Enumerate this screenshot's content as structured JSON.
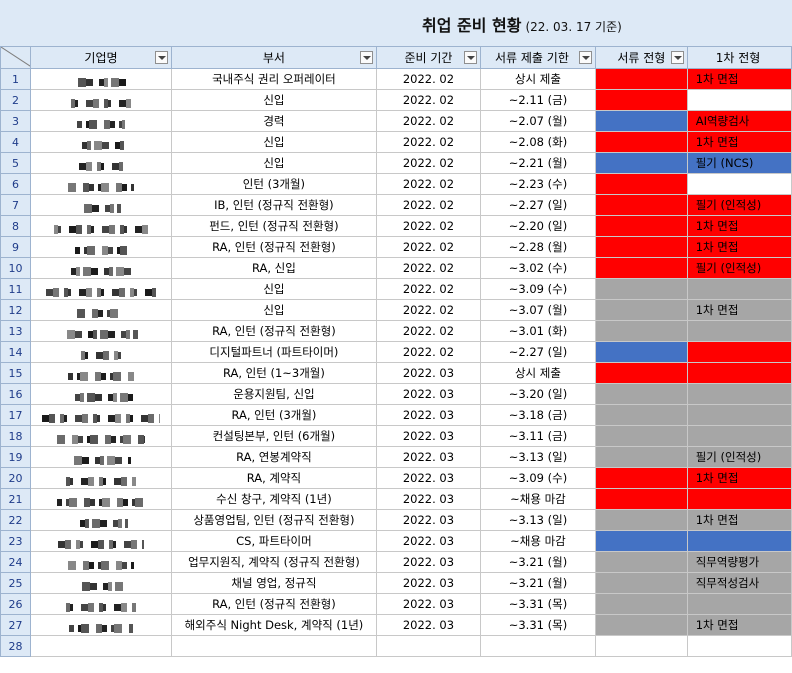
{
  "title": {
    "main": "취업 준비 현황",
    "sub": "(22. 03. 17 기준)"
  },
  "headers": {
    "company": "기업명",
    "dept": "부서",
    "period": "준비 기간",
    "deadline": "서류 제출 기한",
    "doc": "서류 전형",
    "stage1": "1차 전형"
  },
  "colors": {
    "red": "#ff0000",
    "blue": "#4472c4",
    "gray": "#a6a6a6",
    "header": "#dde9f6"
  },
  "rows": [
    {
      "num": "1",
      "dept": "국내주식 권리 오퍼레이터",
      "period": "2022. 02",
      "deadline": "상시 제출",
      "doc": "red",
      "stage1": "1차 면접",
      "s1c": "red"
    },
    {
      "num": "2",
      "dept": "신입",
      "period": "2022. 02",
      "deadline": "~2.11 (금)",
      "doc": "red",
      "stage1": "",
      "s1c": ""
    },
    {
      "num": "3",
      "dept": "경력",
      "period": "2022. 02",
      "deadline": "~2.07 (월)",
      "doc": "blue",
      "stage1": "AI역량검사",
      "s1c": "red"
    },
    {
      "num": "4",
      "dept": "신입",
      "period": "2022. 02",
      "deadline": "~2.08 (화)",
      "doc": "red",
      "stage1": "1차 면접",
      "s1c": "red"
    },
    {
      "num": "5",
      "dept": "신입",
      "period": "2022. 02",
      "deadline": "~2.21 (월)",
      "doc": "blue",
      "stage1": "필기 (NCS)",
      "s1c": "blue"
    },
    {
      "num": "6",
      "dept": "인턴 (3개월)",
      "period": "2022. 02",
      "deadline": "~2.23 (수)",
      "doc": "red",
      "stage1": "",
      "s1c": ""
    },
    {
      "num": "7",
      "dept": "IB, 인턴 (정규직 전환형)",
      "period": "2022. 02",
      "deadline": "~2.27 (일)",
      "doc": "red",
      "stage1": "필기 (인적성)",
      "s1c": "red"
    },
    {
      "num": "8",
      "dept": "펀드, 인턴 (정규직 전환형)",
      "period": "2022. 02",
      "deadline": "~2.20 (일)",
      "doc": "red",
      "stage1": "1차 면접",
      "s1c": "red"
    },
    {
      "num": "9",
      "dept": "RA, 인턴 (정규직 전환형)",
      "period": "2022. 02",
      "deadline": "~2.28 (월)",
      "doc": "red",
      "stage1": "1차 면접",
      "s1c": "red"
    },
    {
      "num": "10",
      "dept": "RA, 신입",
      "period": "2022. 02",
      "deadline": "~3.02 (수)",
      "doc": "red",
      "stage1": "필기 (인적성)",
      "s1c": "red"
    },
    {
      "num": "11",
      "dept": "신입",
      "period": "2022. 02",
      "deadline": "~3.09 (수)",
      "doc": "gray",
      "stage1": "",
      "s1c": "gray"
    },
    {
      "num": "12",
      "dept": "신입",
      "period": "2022. 02",
      "deadline": "~3.07 (월)",
      "doc": "gray",
      "stage1": "1차 면접",
      "s1c": "gray"
    },
    {
      "num": "13",
      "dept": "RA, 인턴 (정규직 전환형)",
      "period": "2022. 02",
      "deadline": "~3.01 (화)",
      "doc": "gray",
      "stage1": "",
      "s1c": "gray"
    },
    {
      "num": "14",
      "dept": "디지털파트너 (파트타이머)",
      "period": "2022. 02",
      "deadline": "~2.27 (일)",
      "doc": "blue",
      "stage1": "",
      "s1c": "red"
    },
    {
      "num": "15",
      "dept": "RA, 인턴 (1~3개월)",
      "period": "2022. 03",
      "deadline": "상시 제출",
      "doc": "red",
      "stage1": "",
      "s1c": "red"
    },
    {
      "num": "16",
      "dept": "운용지원팀, 신입",
      "period": "2022. 03",
      "deadline": "~3.20 (일)",
      "doc": "gray",
      "stage1": "",
      "s1c": "gray"
    },
    {
      "num": "17",
      "dept": "RA, 인턴 (3개월)",
      "period": "2022. 03",
      "deadline": "~3.18 (금)",
      "doc": "gray",
      "stage1": "",
      "s1c": "gray"
    },
    {
      "num": "18",
      "dept": "컨설팅본부, 인턴 (6개월)",
      "period": "2022. 03",
      "deadline": "~3.11 (금)",
      "doc": "gray",
      "stage1": "",
      "s1c": "gray"
    },
    {
      "num": "19",
      "dept": "RA, 연봉계약직",
      "period": "2022. 03",
      "deadline": "~3.13 (일)",
      "doc": "gray",
      "stage1": "필기 (인적성)",
      "s1c": "gray"
    },
    {
      "num": "20",
      "dept": "RA, 계약직",
      "period": "2022. 03",
      "deadline": "~3.09 (수)",
      "doc": "red",
      "stage1": "1차 면접",
      "s1c": "red"
    },
    {
      "num": "21",
      "dept": "수신 창구, 계약직 (1년)",
      "period": "2022. 03",
      "deadline": "~채용 마감",
      "doc": "red",
      "stage1": "",
      "s1c": "red"
    },
    {
      "num": "22",
      "dept": "상품영업팀, 인턴 (정규직 전환형)",
      "period": "2022. 03",
      "deadline": "~3.13 (일)",
      "doc": "gray",
      "stage1": "1차 면접",
      "s1c": "gray"
    },
    {
      "num": "23",
      "dept": "CS, 파트타이머",
      "period": "2022. 03",
      "deadline": "~채용 마감",
      "doc": "blue",
      "stage1": "",
      "s1c": "blue"
    },
    {
      "num": "24",
      "dept": "업무지원직, 계약직 (정규직 전환형)",
      "period": "2022. 03",
      "deadline": "~3.21 (월)",
      "doc": "gray",
      "stage1": "직무역량평가",
      "s1c": "gray"
    },
    {
      "num": "25",
      "dept": "채널 영업, 정규직",
      "period": "2022. 03",
      "deadline": "~3.21 (월)",
      "doc": "gray",
      "stage1": "직무적성검사",
      "s1c": "gray"
    },
    {
      "num": "26",
      "dept": "RA, 인턴 (정규직 전환형)",
      "period": "2022. 03",
      "deadline": "~3.31 (목)",
      "doc": "gray",
      "stage1": "",
      "s1c": "gray"
    },
    {
      "num": "27",
      "dept": "해외주식 Night Desk, 계약직 (1년)",
      "period": "2022. 03",
      "deadline": "~3.31 (목)",
      "doc": "gray",
      "stage1": "1차 면접",
      "s1c": "gray"
    },
    {
      "num": "28",
      "dept": "",
      "period": "",
      "deadline": "",
      "doc": "",
      "stage1": "",
      "s1c": ""
    }
  ]
}
